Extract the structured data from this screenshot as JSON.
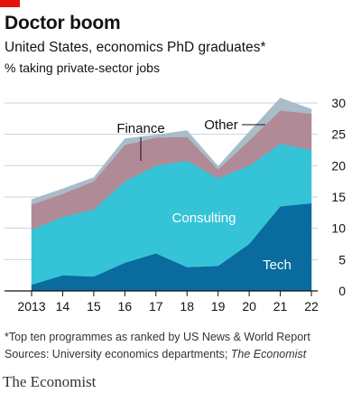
{
  "header": {
    "title": "Doctor boom",
    "subtitle": "United States, economics PhD graduates*",
    "unit": "% taking private-sector jobs"
  },
  "chart_data": {
    "type": "area",
    "stacked": true,
    "title": "Doctor boom",
    "subtitle": "United States, economics PhD graduates*",
    "ylabel": "% taking private-sector jobs",
    "x": [
      2013,
      2014,
      2015,
      2016,
      2017,
      2018,
      2019,
      2020,
      2021,
      2022
    ],
    "x_tick_labels": [
      "2013",
      "14",
      "15",
      "16",
      "17",
      "18",
      "19",
      "20",
      "21",
      "22"
    ],
    "y_ticks": [
      0,
      5,
      10,
      15,
      20,
      25,
      30
    ],
    "ylim": [
      0,
      30
    ],
    "y_axis_position": "right",
    "grid": true,
    "series": [
      {
        "name": "Tech",
        "color": "#0a6b9e",
        "values": [
          1.0,
          2.5,
          2.3,
          4.5,
          6.0,
          3.8,
          4.0,
          7.5,
          13.5,
          14.0
        ]
      },
      {
        "name": "Consulting",
        "color": "#35c3d8",
        "values": [
          8.8,
          9.3,
          10.7,
          13.0,
          14.0,
          17.0,
          14.0,
          12.5,
          10.0,
          8.5
        ]
      },
      {
        "name": "Finance",
        "color": "#b08a96",
        "values": [
          4.0,
          3.7,
          4.5,
          5.8,
          4.5,
          3.8,
          1.4,
          4.0,
          5.3,
          5.8
        ]
      },
      {
        "name": "Other",
        "color": "#a9bcc9",
        "values": [
          0.8,
          0.8,
          0.6,
          1.0,
          0.4,
          1.0,
          0.5,
          1.4,
          2.0,
          0.7
        ]
      }
    ],
    "annotations": {
      "finance_label": "Finance",
      "other_label": "Other",
      "consulting_label": "Consulting",
      "tech_label": "Tech"
    }
  },
  "footnote": {
    "note": "*Top ten programmes as ranked by US News & World Report",
    "sources_prefix": "Sources: University economics departments; ",
    "sources_italic": "The Economist"
  },
  "brand": "The Economist",
  "colors": {
    "brand_red": "#e3120b",
    "grid": "#c8d2d9",
    "axis": "#121212"
  }
}
